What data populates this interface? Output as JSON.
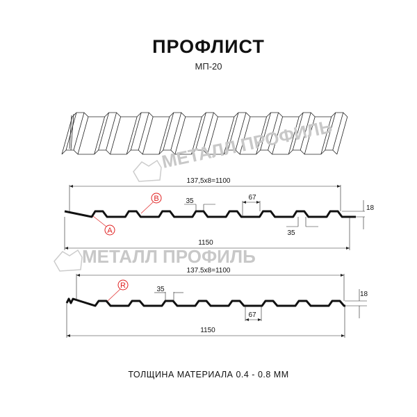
{
  "header": {
    "title": "ПРОФЛИСТ",
    "subtitle": "МП-20"
  },
  "watermark": {
    "text": "МЕТАЛЛ ПРОФИЛЬ",
    "color": "#c8c8c8"
  },
  "profile_1": {
    "pitch_label": "137,5х8=1100",
    "width_label": "1150",
    "crest_label": "35",
    "trough_label": "67",
    "bottom_label": "35",
    "height_label": "18",
    "marker_a": "A",
    "marker_b": "B"
  },
  "profile_2": {
    "pitch_label": "137.5x8=1100",
    "width_label": "1150",
    "crest_label": "35",
    "trough_label": "67",
    "height_label": "18",
    "marker_r": "R"
  },
  "marker_color": "#e02020",
  "footer": {
    "text": "ТОЛЩИНА МАТЕРИАЛА 0.4 - 0.8 ММ"
  }
}
